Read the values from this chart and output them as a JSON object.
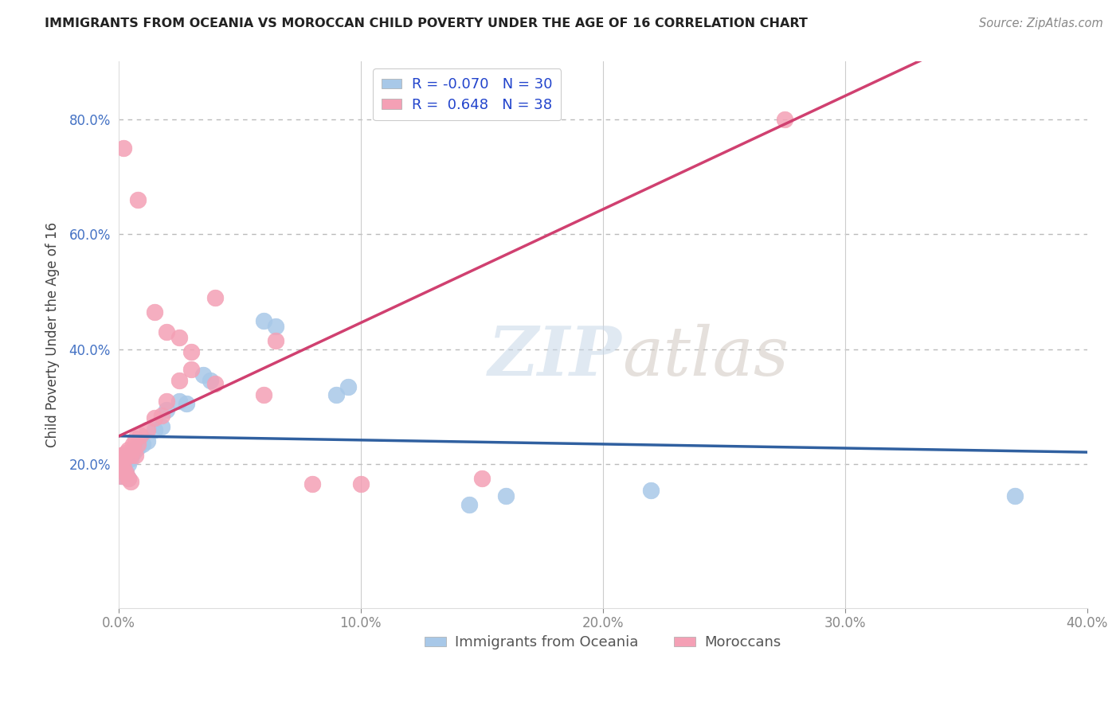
{
  "title": "IMMIGRANTS FROM OCEANIA VS MOROCCAN CHILD POVERTY UNDER THE AGE OF 16 CORRELATION CHART",
  "source": "Source: ZipAtlas.com",
  "ylabel": "Child Poverty Under the Age of 16",
  "xlim": [
    0.0,
    0.4
  ],
  "ylim": [
    -0.05,
    0.9
  ],
  "xtick_labels": [
    "0.0%",
    "",
    "10.0%",
    "",
    "20.0%",
    "",
    "30.0%",
    "",
    "40.0%"
  ],
  "xtick_vals": [
    0.0,
    0.05,
    0.1,
    0.15,
    0.2,
    0.25,
    0.3,
    0.35,
    0.4
  ],
  "ytick_labels": [
    "20.0%",
    "40.0%",
    "60.0%",
    "80.0%"
  ],
  "ytick_vals": [
    0.2,
    0.4,
    0.6,
    0.8
  ],
  "blue_color": "#a8c8e8",
  "pink_color": "#f4a0b5",
  "blue_line_color": "#3060a0",
  "pink_line_color": "#d04070",
  "watermark_zip": "ZIP",
  "watermark_atlas": "atlas",
  "blue_R": -0.07,
  "pink_R": 0.648,
  "blue_N": 30,
  "pink_N": 38,
  "blue_points": [
    [
      0.001,
      0.21
    ],
    [
      0.001,
      0.19
    ],
    [
      0.001,
      0.18
    ],
    [
      0.002,
      0.205
    ],
    [
      0.002,
      0.195
    ],
    [
      0.003,
      0.215
    ],
    [
      0.003,
      0.185
    ],
    [
      0.004,
      0.2
    ],
    [
      0.004,
      0.175
    ],
    [
      0.005,
      0.21
    ],
    [
      0.006,
      0.22
    ],
    [
      0.007,
      0.225
    ],
    [
      0.008,
      0.23
    ],
    [
      0.01,
      0.235
    ],
    [
      0.012,
      0.24
    ],
    [
      0.015,
      0.26
    ],
    [
      0.018,
      0.265
    ],
    [
      0.02,
      0.295
    ],
    [
      0.025,
      0.31
    ],
    [
      0.028,
      0.305
    ],
    [
      0.035,
      0.355
    ],
    [
      0.038,
      0.345
    ],
    [
      0.06,
      0.45
    ],
    [
      0.065,
      0.44
    ],
    [
      0.09,
      0.32
    ],
    [
      0.095,
      0.335
    ],
    [
      0.145,
      0.13
    ],
    [
      0.16,
      0.145
    ],
    [
      0.22,
      0.155
    ],
    [
      0.37,
      0.145
    ]
  ],
  "pink_points": [
    [
      0.001,
      0.215
    ],
    [
      0.001,
      0.2
    ],
    [
      0.001,
      0.19
    ],
    [
      0.001,
      0.18
    ],
    [
      0.002,
      0.21
    ],
    [
      0.002,
      0.195
    ],
    [
      0.003,
      0.22
    ],
    [
      0.003,
      0.185
    ],
    [
      0.004,
      0.225
    ],
    [
      0.004,
      0.175
    ],
    [
      0.005,
      0.215
    ],
    [
      0.005,
      0.17
    ],
    [
      0.006,
      0.235
    ],
    [
      0.006,
      0.225
    ],
    [
      0.007,
      0.245
    ],
    [
      0.007,
      0.215
    ],
    [
      0.008,
      0.235
    ],
    [
      0.009,
      0.25
    ],
    [
      0.012,
      0.26
    ],
    [
      0.015,
      0.28
    ],
    [
      0.018,
      0.285
    ],
    [
      0.02,
      0.31
    ],
    [
      0.025,
      0.345
    ],
    [
      0.03,
      0.365
    ],
    [
      0.04,
      0.49
    ],
    [
      0.06,
      0.32
    ],
    [
      0.065,
      0.415
    ],
    [
      0.08,
      0.165
    ],
    [
      0.1,
      0.165
    ],
    [
      0.15,
      0.175
    ],
    [
      0.002,
      0.75
    ],
    [
      0.008,
      0.66
    ],
    [
      0.015,
      0.465
    ],
    [
      0.02,
      0.43
    ],
    [
      0.025,
      0.42
    ],
    [
      0.03,
      0.395
    ],
    [
      0.04,
      0.34
    ],
    [
      0.275,
      0.8
    ]
  ]
}
